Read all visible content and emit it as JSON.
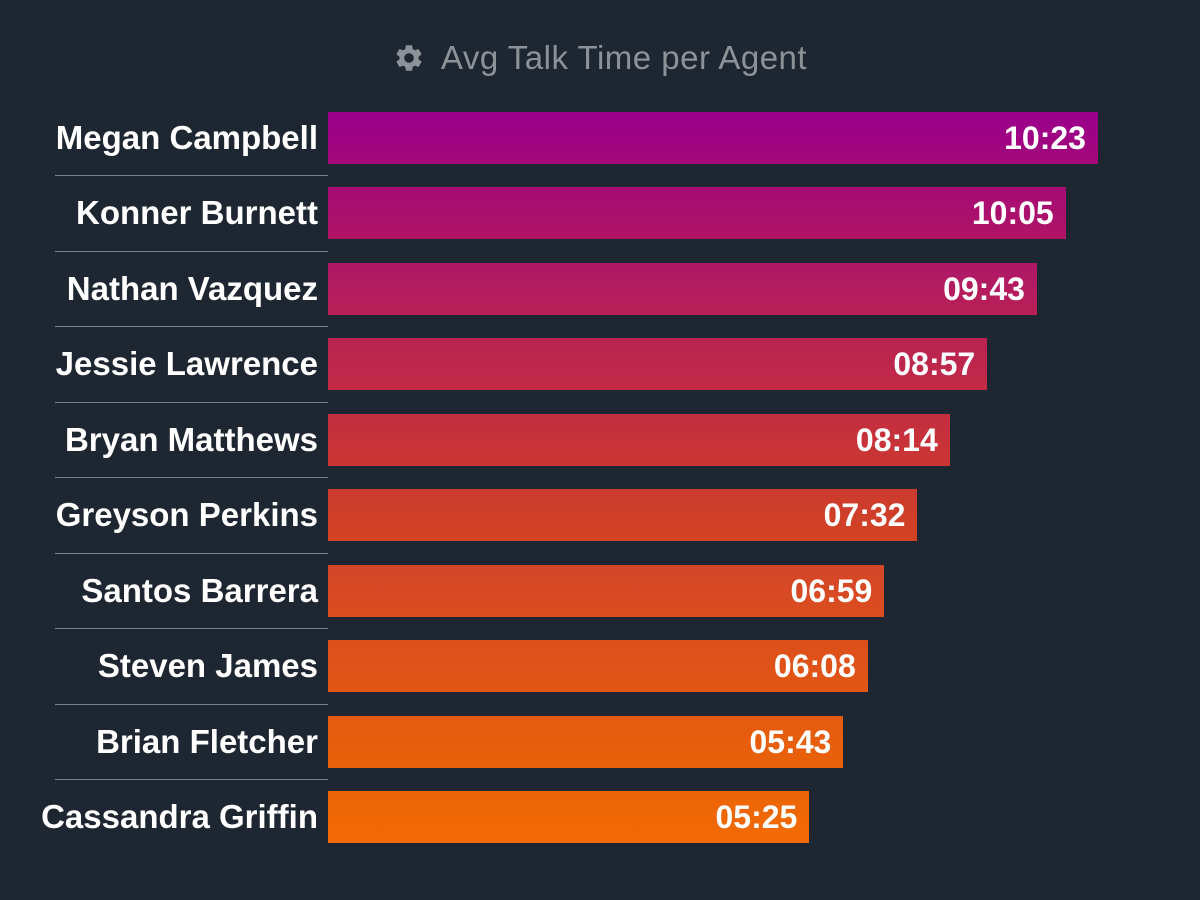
{
  "header": {
    "icon": "gear-icon",
    "title": "Avg Talk Time per Agent"
  },
  "colors": {
    "background": "#1E2731",
    "title_text": "#8C9298",
    "label_text": "#FFFFFF",
    "value_text": "#FFFFFF",
    "divider": "#78808A"
  },
  "chart_data": {
    "type": "bar",
    "orientation": "horizontal",
    "title": "Avg Talk Time per Agent",
    "grid": false,
    "legend": false,
    "value_label_position": "inside-end",
    "categories": [
      "Megan Campbell",
      "Konner Burnett",
      "Nathan Vazquez",
      "Jessie Lawrence",
      "Bryan Matthews",
      "Greyson Perkins",
      "Santos Barrera",
      "Steven James",
      "Brian Fletcher",
      "Cassandra Griffin"
    ],
    "values": [
      "10:23",
      "10:05",
      "09:43",
      "08:57",
      "08:14",
      "07:32",
      "06:59",
      "06:08",
      "05:43",
      "05:25"
    ],
    "values_seconds": [
      623,
      605,
      583,
      537,
      494,
      452,
      419,
      368,
      343,
      325
    ],
    "bar_width_pct": [
      88.3,
      84.6,
      81.3,
      75.6,
      71.3,
      67.6,
      63.8,
      61.9,
      59.1,
      55.2
    ],
    "bar_colors": [
      {
        "top": "#99008C",
        "bottom": "#A30879"
      },
      {
        "top": "#A60B76",
        "bottom": "#AF1465"
      },
      {
        "top": "#AE1769",
        "bottom": "#B92055"
      },
      {
        "top": "#B92253",
        "bottom": "#C22B45"
      },
      {
        "top": "#C32D41",
        "bottom": "#CB3632"
      },
      {
        "top": "#CC3A2F",
        "bottom": "#D34323"
      },
      {
        "top": "#D44529",
        "bottom": "#DB4D1E"
      },
      {
        "top": "#DC4F1C",
        "bottom": "#E25714"
      },
      {
        "top": "#E45A10",
        "bottom": "#EA610A"
      },
      {
        "top": "#EC6407",
        "bottom": "#F26B03"
      }
    ]
  }
}
